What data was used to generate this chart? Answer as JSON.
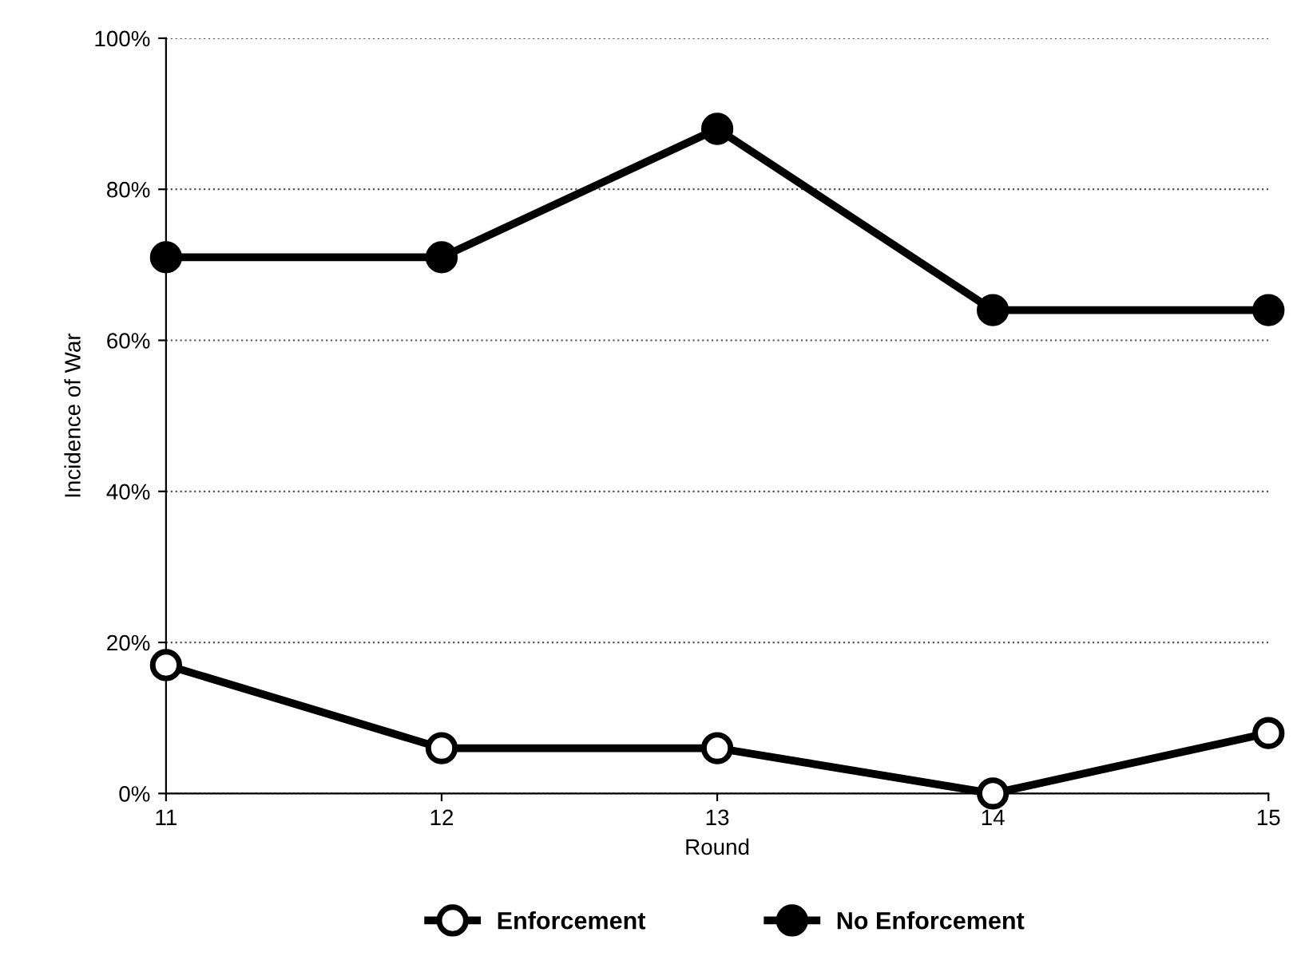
{
  "chart_data": {
    "type": "line",
    "xlabel": "Round",
    "ylabel": "Incidence of War",
    "x": [
      11,
      12,
      13,
      14,
      15
    ],
    "series": [
      {
        "name": "Enforcement",
        "color": "#000000",
        "values": [
          17,
          6,
          6,
          0,
          8
        ]
      },
      {
        "name": "No Enforcement",
        "color": "#000000",
        "values": [
          71,
          71,
          88,
          64,
          64
        ]
      }
    ],
    "xlim": [
      11,
      15
    ],
    "xticks": [
      11,
      12,
      13,
      14,
      15
    ],
    "ylim": [
      0,
      100
    ],
    "yticks": [
      {
        "value": 0,
        "label": "0%"
      },
      {
        "value": 20,
        "label": "20%"
      },
      {
        "value": 40,
        "label": "40%"
      },
      {
        "value": 60,
        "label": "60%"
      },
      {
        "value": 80,
        "label": "80%"
      },
      {
        "value": 100,
        "label": "100%"
      }
    ],
    "grid": "y",
    "legend": "bottom",
    "marker": "circle",
    "line_style": "solid"
  }
}
